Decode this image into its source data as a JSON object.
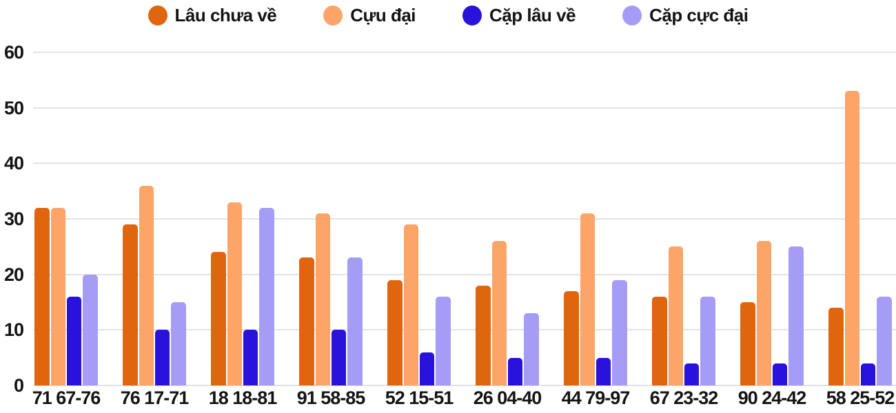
{
  "chart_data": {
    "type": "bar",
    "title": "",
    "xlabel": "",
    "ylabel": "",
    "ylim": [
      0,
      60
    ],
    "yticks": [
      0,
      10,
      20,
      30,
      40,
      50,
      60
    ],
    "grid": true,
    "legend_position": "top",
    "categories": [
      "71 67-76",
      "76 17-71",
      "18 18-81",
      "91 58-85",
      "52 15-51",
      "26 04-40",
      "44 79-97",
      "67 23-32",
      "90 24-42",
      "58 25-52"
    ],
    "series": [
      {
        "name": "Lâu chưa về",
        "color": "#df650f",
        "values": [
          32,
          29,
          24,
          23,
          19,
          18,
          17,
          16,
          15,
          14
        ]
      },
      {
        "name": "Cựu đại",
        "color": "#fda469",
        "values": [
          32,
          36,
          33,
          31,
          29,
          26,
          31,
          25,
          26,
          53
        ]
      },
      {
        "name": "Cặp lâu về",
        "color": "#2812dc",
        "values": [
          16,
          10,
          10,
          10,
          6,
          5,
          5,
          4,
          4,
          4
        ]
      },
      {
        "name": "Cặp cực đại",
        "color": "#a59cf5",
        "values": [
          20,
          15,
          32,
          23,
          16,
          13,
          19,
          16,
          25,
          16
        ]
      }
    ]
  },
  "styles": {
    "background": "#ffffff",
    "grid_color": "#e3e3e3",
    "text_color": "#141414"
  }
}
